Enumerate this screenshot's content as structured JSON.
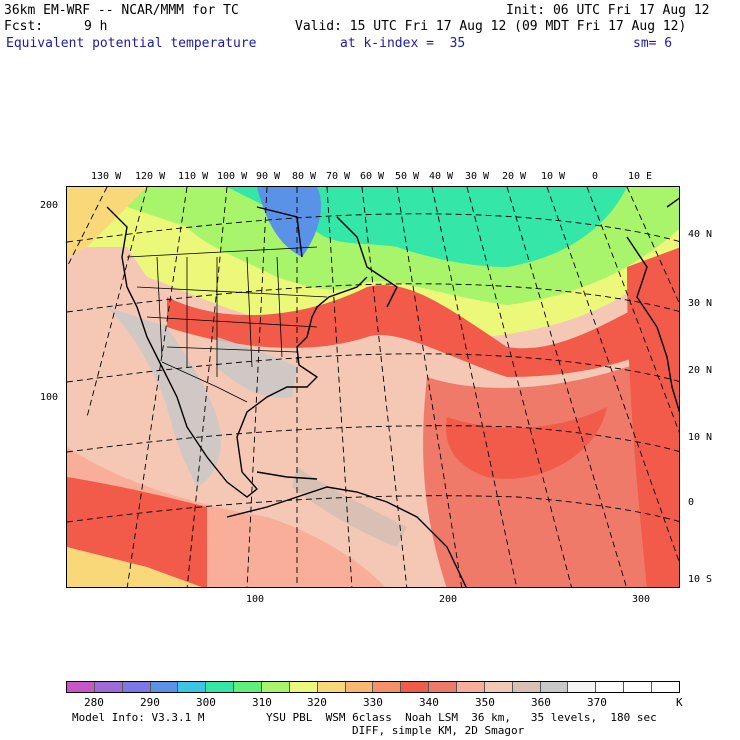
{
  "header": {
    "model": "36km EM-WRF -- NCAR/MMM for TC",
    "init": "Init: 06 UTC Fri 17 Aug 12",
    "fcst_label": "Fcst:",
    "fcst_value": "9 h",
    "valid": "Valid: 15 UTC Fri 17 Aug 12 (09 MDT Fri 17 Aug 12)",
    "field": "Equivalent potential temperature",
    "kindex": "at k-index =  35",
    "sm": "sm= 6"
  },
  "map": {
    "lon_labels": [
      "130 W",
      "120 W",
      "110 W",
      "100 W",
      "90 W",
      "80 W",
      "70 W",
      "60 W",
      "50 W",
      "40 W",
      "30 W",
      "20 W",
      "10 W",
      "0",
      "10 E"
    ],
    "lat_labels": [
      "40 N",
      "30 N",
      "20 N",
      "10 N",
      "0",
      "10 S"
    ],
    "y_grid_labels": [
      "200",
      "100"
    ],
    "x_grid_labels": [
      "100",
      "200",
      "300"
    ]
  },
  "colorbar": {
    "colors": [
      "#c856c8",
      "#a06ad8",
      "#7c78e8",
      "#5a92e8",
      "#3cc6e6",
      "#34e6a8",
      "#5ef07a",
      "#a8f46a",
      "#ecf87a",
      "#f8d878",
      "#f8b870",
      "#f8906a",
      "#f25a4a",
      "#f07a6a",
      "#f8ae98",
      "#f4c8b4",
      "#d8c0b4",
      "#c8c8c8",
      "#f4f4f4",
      "#ffffff",
      "#ffffff",
      "#ffffff"
    ],
    "labels": [
      "280",
      "290",
      "300",
      "310",
      "320",
      "330",
      "340",
      "350",
      "360",
      "370",
      "K"
    ]
  },
  "footer": {
    "line1_left": "Model Info: V3.3.1 M",
    "line1_right": "YSU PBL  WSM 6class  Noah LSM  36 km,   35 levels,  180 sec",
    "line2": "DIFF, simple KM, 2D Smagor"
  }
}
